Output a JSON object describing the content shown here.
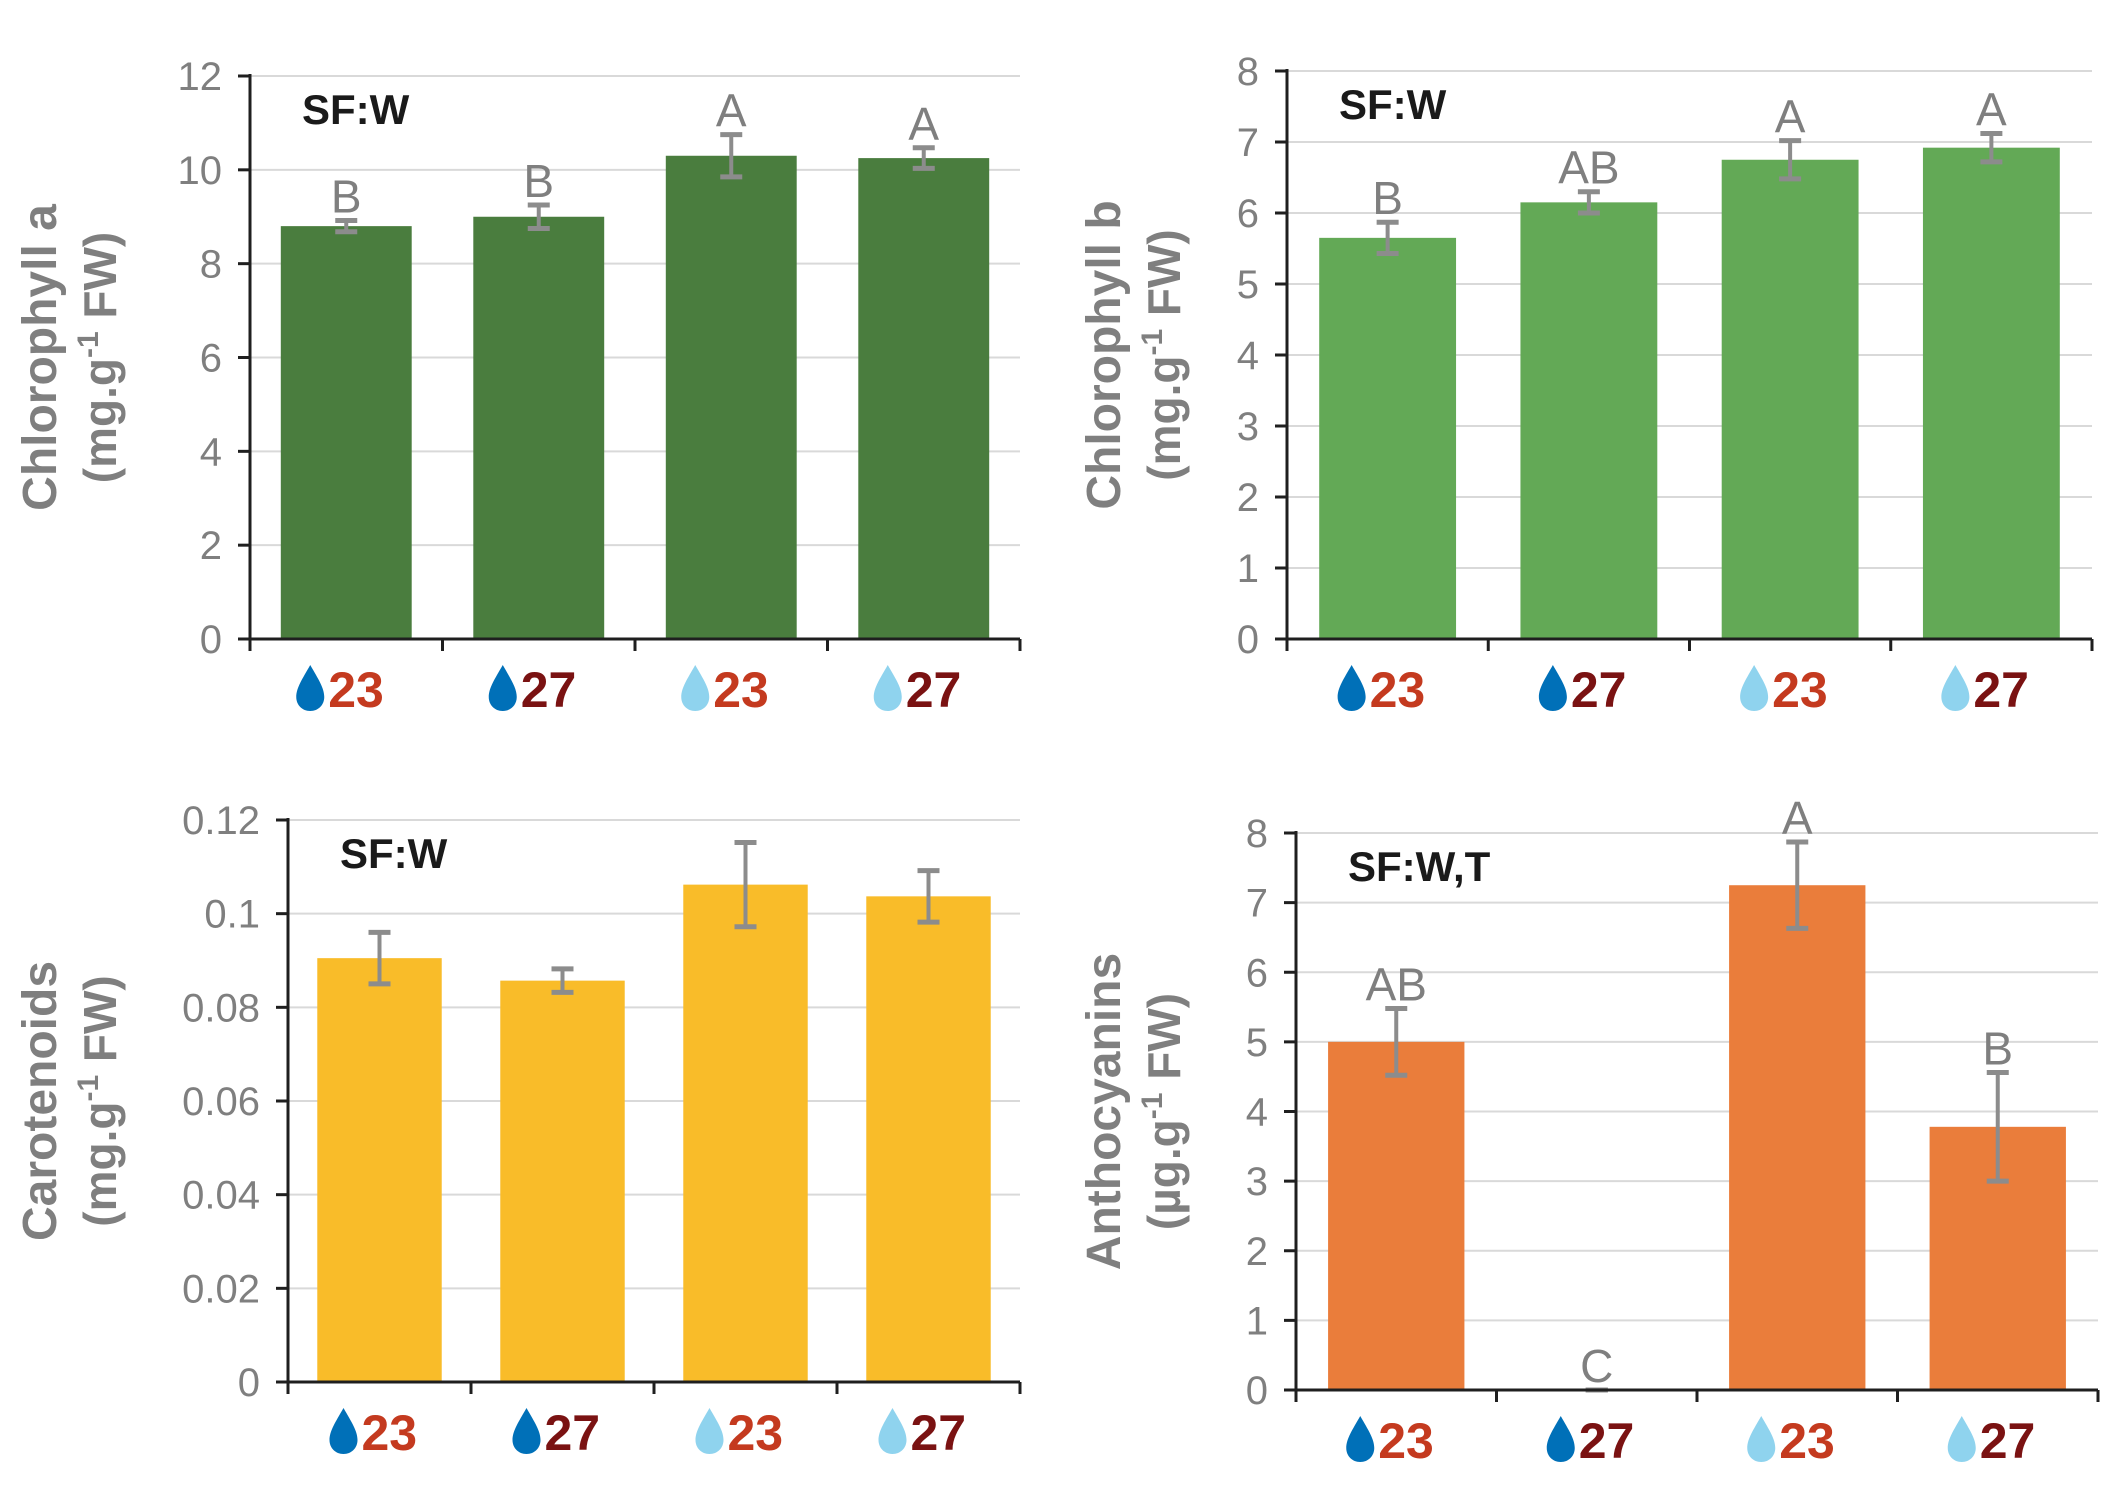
{
  "colors": {
    "axis": "#1f1f1f",
    "grid": "#d9d9d9",
    "tick_text": "#7f7f7f",
    "error_bar": "#8c8c8c",
    "sig_text": "#7f7f7f",
    "sf_text": "#1a1a1a",
    "drop_dark": "#0070b8",
    "drop_light": "#8fd3ee",
    "label_23": "#c43a1f",
    "label_27": "#7a1212"
  },
  "chart_data": [
    {
      "id": "chlorophyll-a",
      "type": "bar",
      "ylabel_line1": "Chlorophyll a",
      "ylabel_line2_pre": "(mg.g",
      "ylabel_line2_sup": "-1",
      "ylabel_line2_post": " FW)",
      "annotation": "SF:W",
      "bar_color": "#4a7d3e",
      "ylim": [
        0,
        12
      ],
      "yticks": [
        0,
        2,
        4,
        6,
        8,
        10,
        12
      ],
      "ytick_labels": [
        "0",
        "2",
        "4",
        "6",
        "8",
        "10",
        "12"
      ],
      "categories": [
        {
          "icon": "water-drop-dark-icon",
          "label": "23"
        },
        {
          "icon": "water-drop-dark-icon",
          "label": "27"
        },
        {
          "icon": "water-drop-light-icon",
          "label": "23"
        },
        {
          "icon": "water-drop-light-icon",
          "label": "27"
        }
      ],
      "values": [
        8.8,
        9.0,
        10.3,
        10.25
      ],
      "errors": [
        0.12,
        0.25,
        0.45,
        0.22
      ],
      "significance": [
        "B",
        "B",
        "A",
        "A"
      ]
    },
    {
      "id": "chlorophyll-b",
      "type": "bar",
      "ylabel_line1": "Chlorophyll b",
      "ylabel_line2_pre": "(mg.g",
      "ylabel_line2_sup": "-1",
      "ylabel_line2_post": " FW)",
      "annotation": "SF:W",
      "bar_color": "#63a956",
      "ylim": [
        0,
        8
      ],
      "yticks": [
        0,
        1,
        2,
        3,
        4,
        5,
        6,
        7,
        8
      ],
      "ytick_labels": [
        "0",
        "1",
        "2",
        "3",
        "4",
        "5",
        "6",
        "7",
        "8"
      ],
      "categories": [
        {
          "icon": "water-drop-dark-icon",
          "label": "23"
        },
        {
          "icon": "water-drop-dark-icon",
          "label": "27"
        },
        {
          "icon": "water-drop-light-icon",
          "label": "23"
        },
        {
          "icon": "water-drop-light-icon",
          "label": "27"
        }
      ],
      "values": [
        5.65,
        6.15,
        6.75,
        6.92
      ],
      "errors": [
        0.22,
        0.15,
        0.27,
        0.2
      ],
      "significance": [
        "B",
        "AB",
        "A",
        "A"
      ]
    },
    {
      "id": "carotenoids",
      "type": "bar",
      "ylabel_line1": "Carotenoids",
      "ylabel_line2_pre": "(mg.g",
      "ylabel_line2_sup": "-1",
      "ylabel_line2_post": " FW)",
      "annotation": "SF:W",
      "bar_color": "#f9bc29",
      "ylim": [
        0,
        0.12
      ],
      "yticks": [
        0,
        0.02,
        0.04,
        0.06,
        0.08,
        0.1,
        0.12
      ],
      "ytick_labels": [
        "0",
        "0.02",
        "0.04",
        "0.06",
        "0.08",
        "0.1",
        "0.12"
      ],
      "categories": [
        {
          "icon": "water-drop-dark-icon",
          "label": "23"
        },
        {
          "icon": "water-drop-dark-icon",
          "label": "27"
        },
        {
          "icon": "water-drop-light-icon",
          "label": "23"
        },
        {
          "icon": "water-drop-light-icon",
          "label": "27"
        }
      ],
      "values": [
        0.0905,
        0.0857,
        0.1062,
        0.1037
      ],
      "errors": [
        0.0055,
        0.0025,
        0.009,
        0.0055
      ],
      "significance": [
        "",
        "",
        "",
        ""
      ]
    },
    {
      "id": "anthocyanins",
      "type": "bar",
      "ylabel_line1": "Anthocyanins",
      "ylabel_line2_pre": "(µg.g",
      "ylabel_line2_sup": "-1",
      "ylabel_line2_post": " FW)",
      "annotation": "SF:W,T",
      "bar_color": "#ea7d3b",
      "ylim": [
        0,
        8
      ],
      "yticks": [
        0,
        1,
        2,
        3,
        4,
        5,
        6,
        7,
        8
      ],
      "ytick_labels": [
        "0",
        "1",
        "2",
        "3",
        "4",
        "5",
        "6",
        "7",
        "8"
      ],
      "categories": [
        {
          "icon": "water-drop-dark-icon",
          "label": "23"
        },
        {
          "icon": "water-drop-dark-icon",
          "label": "27"
        },
        {
          "icon": "water-drop-light-icon",
          "label": "23"
        },
        {
          "icon": "water-drop-light-icon",
          "label": "27"
        }
      ],
      "values": [
        5.0,
        0.0,
        7.25,
        3.78
      ],
      "errors": [
        0.48,
        0.0,
        0.62,
        0.78
      ],
      "significance": [
        "AB",
        "C",
        "A",
        "B"
      ]
    }
  ]
}
